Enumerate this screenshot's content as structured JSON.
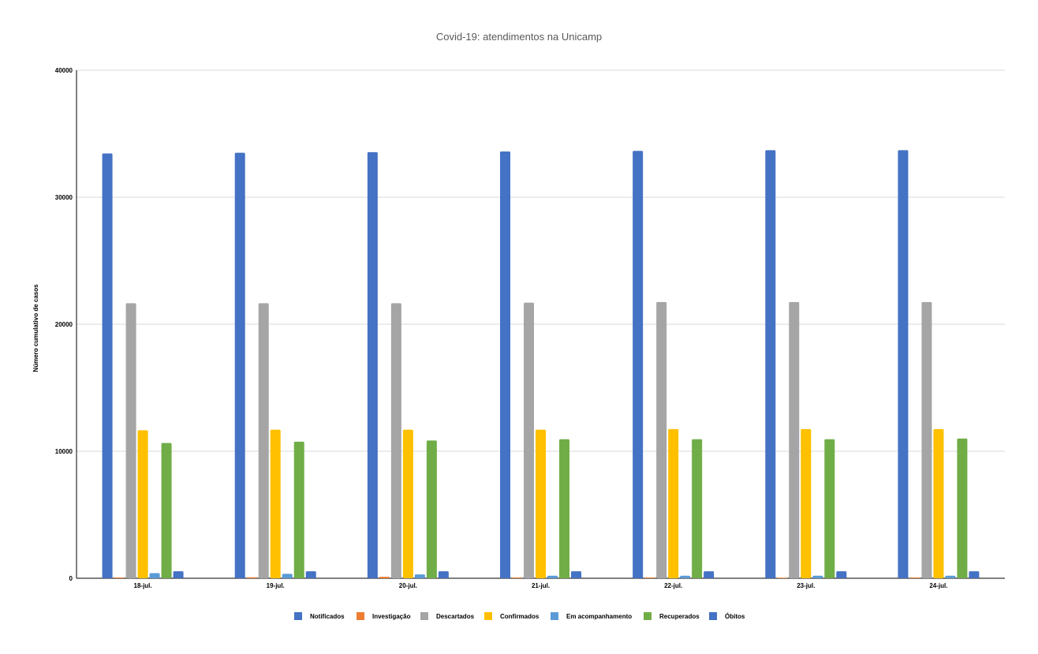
{
  "chart_data": {
    "type": "bar",
    "title": "Covid-19: atendimentos na Unicamp",
    "xlabel": "",
    "ylabel": "Número cumulativo de casos",
    "ylim": [
      0,
      40000
    ],
    "yticks": [
      "0",
      "10000",
      "20000",
      "30000",
      "40000"
    ],
    "grid": true,
    "legend_position": "bottom",
    "categories": [
      "18-jul.",
      "19-jul.",
      "20-jul.",
      "21-jul.",
      "22-jul.",
      "23-jul.",
      "24-jul."
    ],
    "series": [
      {
        "name": "Notificados",
        "color": "#4472c4",
        "values": [
          33450,
          33500,
          33550,
          33600,
          33650,
          33700,
          33700
        ]
      },
      {
        "name": "Investigação",
        "color": "#ed7d31",
        "values": [
          60,
          80,
          120,
          60,
          60,
          50,
          60
        ]
      },
      {
        "name": "Descartados",
        "color": "#a5a5a5",
        "values": [
          21650,
          21650,
          21650,
          21700,
          21750,
          21750,
          21750
        ]
      },
      {
        "name": "Confirmados",
        "color": "#ffc000",
        "values": [
          11650,
          11700,
          11700,
          11700,
          11750,
          11750,
          11750
        ]
      },
      {
        "name": "Em acompanhamento",
        "color": "#5b9bd5",
        "values": [
          400,
          350,
          300,
          200,
          200,
          200,
          200
        ]
      },
      {
        "name": "Recuperados",
        "color": "#70ad47",
        "values": [
          10650,
          10750,
          10850,
          10950,
          10950,
          10950,
          11000
        ]
      },
      {
        "name": "Óbitos",
        "color": "#4472c4",
        "values": [
          550,
          550,
          550,
          550,
          550,
          550,
          550
        ]
      }
    ]
  }
}
